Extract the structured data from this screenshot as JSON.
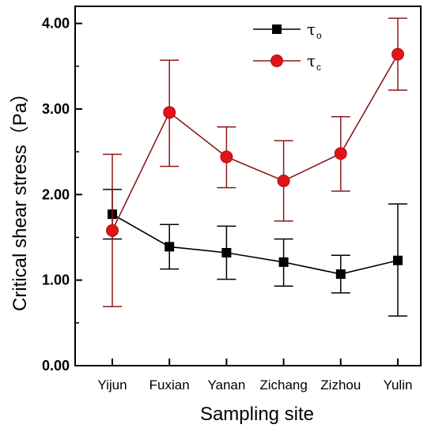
{
  "chart_data": {
    "type": "line",
    "xlabel": "Sampling site",
    "ylabel": "Critical shear stress（Pa）",
    "categories": [
      "Yijun",
      "Fuxian",
      "Yanan",
      "Zichang",
      "Zizhou",
      "Yulin"
    ],
    "ylim": [
      0,
      4.2
    ],
    "yticks": [
      "0.00",
      "1.00",
      "2.00",
      "3.00",
      "4.00"
    ],
    "grid": false,
    "legend_position": "top-center",
    "series": [
      {
        "name": "τ",
        "subscript": "o",
        "color": "#000000",
        "marker": "square",
        "values": [
          1.77,
          1.39,
          1.32,
          1.21,
          1.07,
          1.23
        ],
        "err_low": [
          1.48,
          1.13,
          1.01,
          0.93,
          0.85,
          0.58
        ],
        "err_high": [
          2.06,
          1.65,
          1.63,
          1.48,
          1.29,
          1.89
        ]
      },
      {
        "name": "τ",
        "subscript": "c",
        "color": "#e0141a",
        "line_color": "#8b1a1a",
        "marker": "circle",
        "values": [
          1.58,
          2.96,
          2.44,
          2.16,
          2.48,
          3.64
        ],
        "err_low": [
          0.69,
          2.33,
          2.08,
          1.69,
          2.04,
          3.22
        ],
        "err_high": [
          2.47,
          3.57,
          2.79,
          2.63,
          2.91,
          4.06
        ]
      }
    ]
  }
}
